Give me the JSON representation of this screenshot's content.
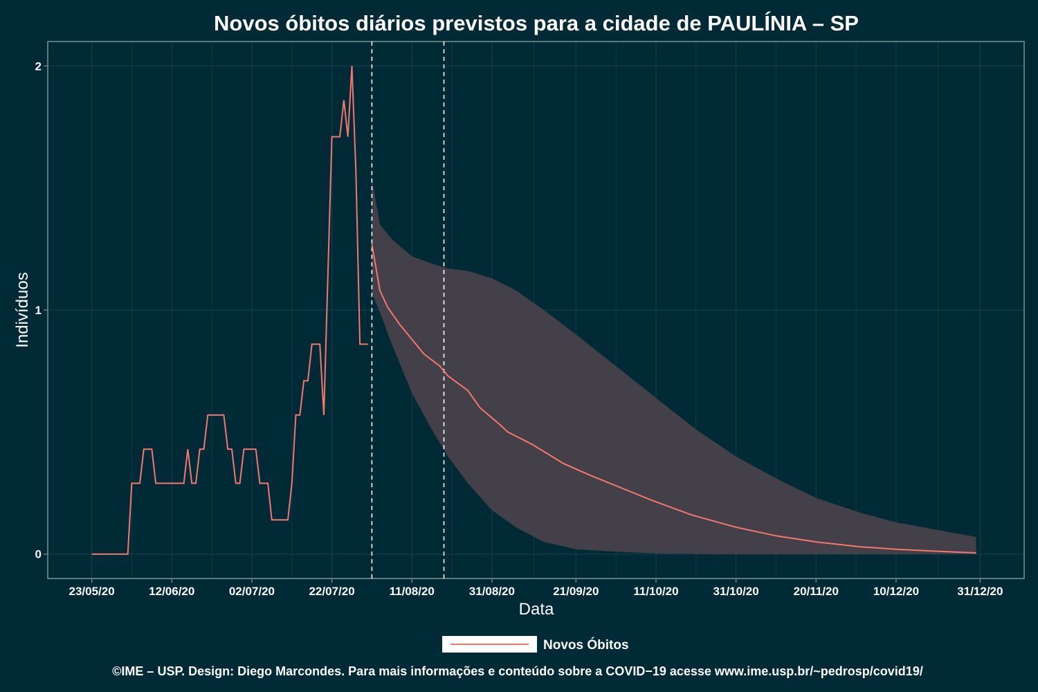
{
  "chart_data": {
    "type": "line",
    "title": "Novos óbitos diários previstos para a cidade de PAULÍNIA – SP",
    "xlabel": "Data",
    "ylabel": "Indivíduos",
    "x_tick_labels": [
      "23/05/20",
      "12/06/20",
      "02/07/20",
      "22/07/20",
      "11/08/20",
      "31/08/20",
      "21/09/20",
      "11/10/20",
      "31/10/20",
      "20/11/20",
      "10/12/20",
      "31/12/20"
    ],
    "y_tick_labels": [
      "0",
      "1",
      "2"
    ],
    "ylim": [
      -0.1,
      2.1
    ],
    "xlim": [
      "2020-05-12",
      "2021-01-11"
    ],
    "grid": true,
    "legend_position": "bottom",
    "series": [
      {
        "name": "Novos Óbitos",
        "color": "#f8766d",
        "observed": [
          [
            "2020-05-23",
            0
          ],
          [
            "2020-05-24",
            0
          ],
          [
            "2020-05-25",
            0
          ],
          [
            "2020-05-26",
            0
          ],
          [
            "2020-05-27",
            0
          ],
          [
            "2020-05-28",
            0
          ],
          [
            "2020-05-29",
            0
          ],
          [
            "2020-05-30",
            0
          ],
          [
            "2020-05-31",
            0
          ],
          [
            "2020-06-01",
            0
          ],
          [
            "2020-06-02",
            0.29
          ],
          [
            "2020-06-03",
            0.29
          ],
          [
            "2020-06-04",
            0.29
          ],
          [
            "2020-06-05",
            0.43
          ],
          [
            "2020-06-06",
            0.43
          ],
          [
            "2020-06-07",
            0.43
          ],
          [
            "2020-06-08",
            0.29
          ],
          [
            "2020-06-09",
            0.29
          ],
          [
            "2020-06-10",
            0.29
          ],
          [
            "2020-06-11",
            0.29
          ],
          [
            "2020-06-12",
            0.29
          ],
          [
            "2020-06-13",
            0.29
          ],
          [
            "2020-06-14",
            0.29
          ],
          [
            "2020-06-15",
            0.29
          ],
          [
            "2020-06-16",
            0.43
          ],
          [
            "2020-06-17",
            0.29
          ],
          [
            "2020-06-18",
            0.29
          ],
          [
            "2020-06-19",
            0.43
          ],
          [
            "2020-06-20",
            0.43
          ],
          [
            "2020-06-21",
            0.57
          ],
          [
            "2020-06-22",
            0.57
          ],
          [
            "2020-06-23",
            0.57
          ],
          [
            "2020-06-24",
            0.57
          ],
          [
            "2020-06-25",
            0.57
          ],
          [
            "2020-06-26",
            0.43
          ],
          [
            "2020-06-27",
            0.43
          ],
          [
            "2020-06-28",
            0.29
          ],
          [
            "2020-06-29",
            0.29
          ],
          [
            "2020-06-30",
            0.43
          ],
          [
            "2020-07-01",
            0.43
          ],
          [
            "2020-07-02",
            0.43
          ],
          [
            "2020-07-03",
            0.43
          ],
          [
            "2020-07-04",
            0.29
          ],
          [
            "2020-07-05",
            0.29
          ],
          [
            "2020-07-06",
            0.29
          ],
          [
            "2020-07-07",
            0.14
          ],
          [
            "2020-07-08",
            0.14
          ],
          [
            "2020-07-09",
            0.14
          ],
          [
            "2020-07-10",
            0.14
          ],
          [
            "2020-07-11",
            0.14
          ],
          [
            "2020-07-12",
            0.29
          ],
          [
            "2020-07-13",
            0.57
          ],
          [
            "2020-07-14",
            0.57
          ],
          [
            "2020-07-15",
            0.71
          ],
          [
            "2020-07-16",
            0.71
          ],
          [
            "2020-07-17",
            0.86
          ],
          [
            "2020-07-18",
            0.86
          ],
          [
            "2020-07-19",
            0.86
          ],
          [
            "2020-07-20",
            0.57
          ],
          [
            "2020-07-21",
            1.14
          ],
          [
            "2020-07-22",
            1.71
          ],
          [
            "2020-07-23",
            1.71
          ],
          [
            "2020-07-24",
            1.71
          ],
          [
            "2020-07-25",
            1.86
          ],
          [
            "2020-07-26",
            1.71
          ],
          [
            "2020-07-27",
            2.0
          ],
          [
            "2020-07-28",
            1.57
          ],
          [
            "2020-07-29",
            0.86
          ],
          [
            "2020-07-30",
            0.86
          ],
          [
            "2020-07-31",
            0.86
          ]
        ],
        "forecast": [
          [
            "2020-08-01",
            1.27
          ],
          [
            "2020-08-03",
            1.08
          ],
          [
            "2020-08-05",
            1.01
          ],
          [
            "2020-08-08",
            0.94
          ],
          [
            "2020-08-11",
            0.88
          ],
          [
            "2020-08-14",
            0.82
          ],
          [
            "2020-08-18",
            0.77
          ],
          [
            "2020-08-20",
            0.73
          ],
          [
            "2020-08-25",
            0.67
          ],
          [
            "2020-08-28",
            0.6
          ],
          [
            "2020-09-02",
            0.53
          ],
          [
            "2020-09-04",
            0.5
          ],
          [
            "2020-09-10",
            0.45
          ],
          [
            "2020-09-14",
            0.41
          ],
          [
            "2020-09-18",
            0.37
          ],
          [
            "2020-09-25",
            0.32
          ],
          [
            "2020-10-01",
            0.28
          ],
          [
            "2020-10-10",
            0.22
          ],
          [
            "2020-10-20",
            0.16
          ],
          [
            "2020-10-31",
            0.11
          ],
          [
            "2020-11-10",
            0.075
          ],
          [
            "2020-11-20",
            0.05
          ],
          [
            "2020-12-01",
            0.03
          ],
          [
            "2020-12-10",
            0.02
          ],
          [
            "2020-12-20",
            0.012
          ],
          [
            "2020-12-30",
            0.005
          ]
        ],
        "interval": [
          [
            "2020-08-01",
            1.07,
            1.54
          ],
          [
            "2020-08-03",
            0.99,
            1.35
          ],
          [
            "2020-08-06",
            0.86,
            1.29
          ],
          [
            "2020-08-11",
            0.66,
            1.22
          ],
          [
            "2020-08-16",
            0.51,
            1.19
          ],
          [
            "2020-08-20",
            0.4,
            1.17
          ],
          [
            "2020-08-25",
            0.29,
            1.16
          ],
          [
            "2020-08-31",
            0.18,
            1.13
          ],
          [
            "2020-09-06",
            0.11,
            1.08
          ],
          [
            "2020-09-13",
            0.05,
            1.0
          ],
          [
            "2020-09-21",
            0.02,
            0.9
          ],
          [
            "2020-10-01",
            0.01,
            0.77
          ],
          [
            "2020-10-11",
            0.003,
            0.64
          ],
          [
            "2020-10-21",
            0.001,
            0.51
          ],
          [
            "2020-10-31",
            0.0,
            0.4
          ],
          [
            "2020-11-10",
            0.0,
            0.31
          ],
          [
            "2020-11-20",
            0.0,
            0.23
          ],
          [
            "2020-12-01",
            0.0,
            0.17
          ],
          [
            "2020-12-10",
            0.0,
            0.13
          ],
          [
            "2020-12-20",
            0.0,
            0.1
          ],
          [
            "2020-12-30",
            0.0,
            0.07
          ]
        ]
      }
    ],
    "vertical_markers": [
      "2020-08-01",
      "2020-08-19"
    ]
  },
  "legend": {
    "label": "Novos Óbitos"
  },
  "caption": "©IME – USP. Design: Diego Marcondes. Para mais informações e conteúdo sobre a COVID−19 acesse www.ime.usp.br/~pedrosp/covid19/",
  "colors": {
    "background": "#002b36",
    "line": "#f8766d",
    "band": "#43404a",
    "grid": "#173c47",
    "axis": "#7f9293"
  }
}
